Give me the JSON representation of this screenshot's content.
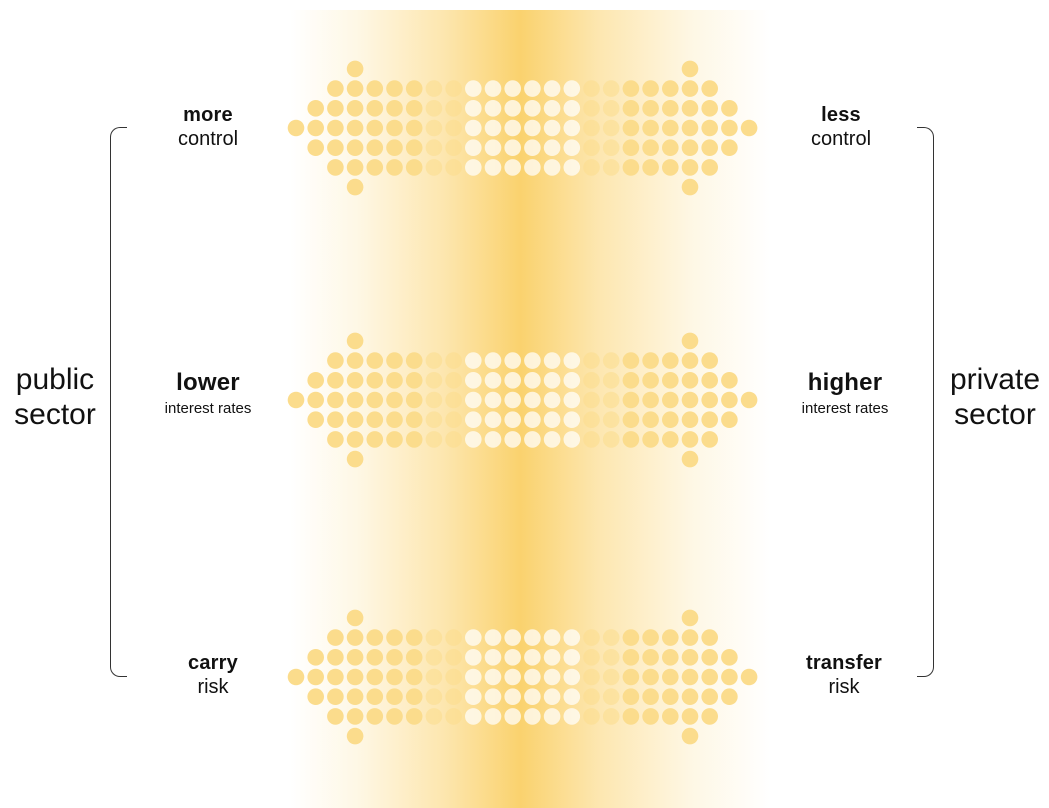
{
  "left_sector": {
    "line1": "public",
    "line2": "sector"
  },
  "right_sector": {
    "line1": "private",
    "line2": "sector"
  },
  "rows": [
    {
      "left": {
        "strong": "more",
        "detail": "control"
      },
      "right": {
        "strong": "less",
        "detail": "control"
      }
    },
    {
      "left": {
        "strong": "lower",
        "detail": "interest rates"
      },
      "right": {
        "strong": "higher",
        "detail": "interest rates"
      }
    },
    {
      "left": {
        "strong": "carry",
        "detail": "risk"
      },
      "right": {
        "strong": "transfer",
        "detail": "risk"
      }
    }
  ],
  "colors": {
    "dot": "#fbdc8c",
    "dot_highlight": "#ffffff",
    "band": "#f9d56e",
    "text": "#111111",
    "bracket": "#333333"
  }
}
